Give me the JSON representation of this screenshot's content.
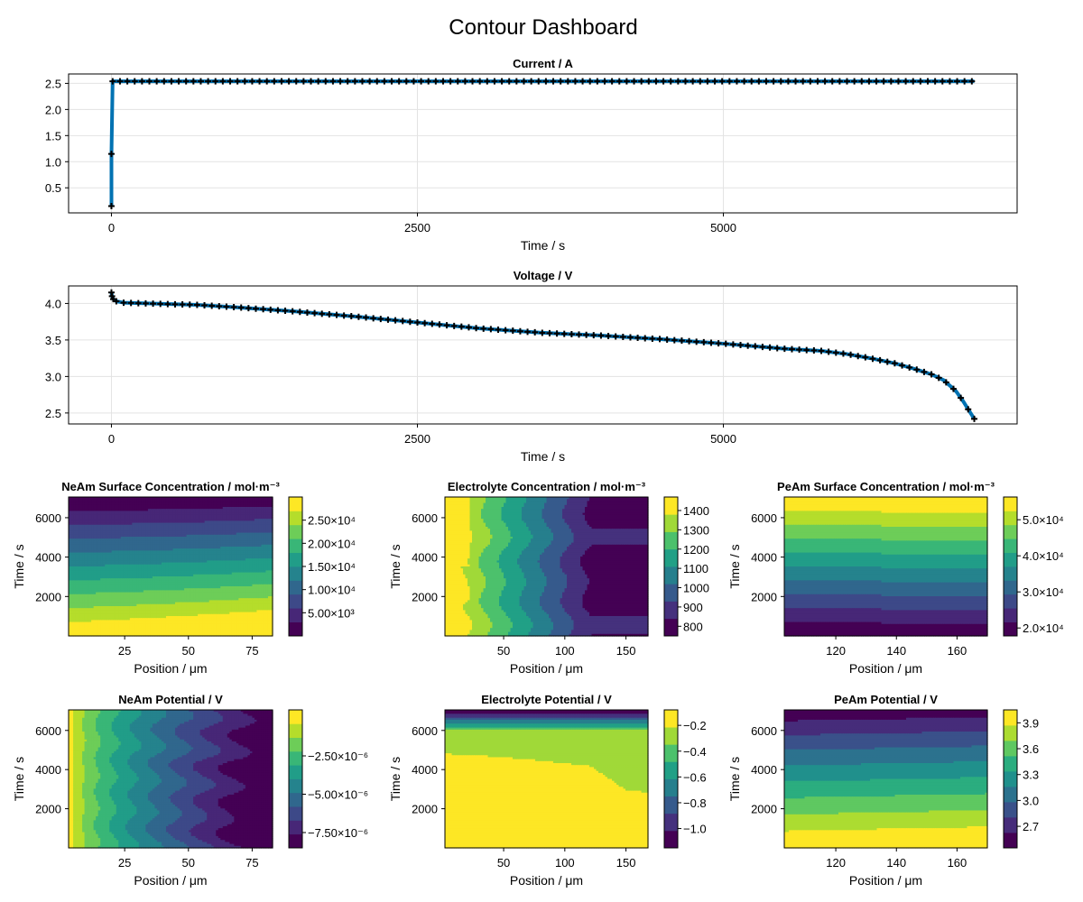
{
  "page": {
    "title": "Contour Dashboard"
  },
  "chart_data": [
    {
      "id": "current",
      "type": "line",
      "title": "Current  /  A",
      "xlabel": "Time  /  s",
      "ylabel": "",
      "xlim": [
        -350,
        7400
      ],
      "ylim": [
        0.02,
        2.68
      ],
      "xticks": [
        0,
        2500,
        5000
      ],
      "xtick_labels": [
        "0",
        "2500",
        "5000"
      ],
      "yticks": [
        0.5,
        1.0,
        1.5,
        2.0,
        2.5
      ],
      "ytick_labels": [
        "0.5",
        "1.0",
        "1.5",
        "2.0",
        "2.5"
      ],
      "grid": true,
      "line_color": "#0072b2",
      "marker": "plus",
      "series": [
        {
          "x": [
            0,
            0,
            10,
            60,
            7050
          ],
          "y": [
            0.15,
            1.15,
            2.54,
            2.54,
            2.54
          ]
        }
      ],
      "marker_generator": {
        "x_start": 10,
        "x_end": 7050,
        "step": 60,
        "y": 2.54,
        "extra": [
          [
            0,
            0.15
          ],
          [
            0,
            1.15
          ]
        ]
      }
    },
    {
      "id": "voltage",
      "type": "line",
      "title": "Voltage  /  V",
      "xlabel": "Time  /  s",
      "ylabel": "",
      "xlim": [
        -350,
        7400
      ],
      "ylim": [
        2.35,
        4.24
      ],
      "xticks": [
        0,
        2500,
        5000
      ],
      "xtick_labels": [
        "0",
        "2500",
        "5000"
      ],
      "yticks": [
        2.5,
        3.0,
        3.5,
        4.0
      ],
      "ytick_labels": [
        "2.5",
        "3.0",
        "3.5",
        "4.0"
      ],
      "grid": true,
      "line_color": "#0072b2",
      "marker": "plus",
      "series": [
        {
          "x": [
            0,
            5,
            15,
            40,
            100,
            300,
            700,
            1000,
            1500,
            2000,
            2500,
            3000,
            3500,
            4000,
            4500,
            5000,
            5500,
            5800,
            6000,
            6200,
            6400,
            6550,
            6700,
            6800,
            6900,
            6960,
            7000,
            7050
          ],
          "y": [
            4.15,
            4.1,
            4.06,
            4.03,
            4.01,
            4.0,
            3.98,
            3.95,
            3.89,
            3.82,
            3.74,
            3.66,
            3.6,
            3.56,
            3.51,
            3.45,
            3.38,
            3.35,
            3.31,
            3.25,
            3.18,
            3.11,
            3.03,
            2.95,
            2.8,
            2.66,
            2.55,
            2.42
          ]
        }
      ],
      "marker_step": 60
    },
    {
      "id": "neam-conc",
      "type": "heatmap",
      "title": "NeAm Surface Concentration  /  mol·m⁻³",
      "xlabel": "Position  /  μm",
      "ylabel": "Time  /  s",
      "xlim": [
        3,
        83
      ],
      "ylim": [
        0,
        7050
      ],
      "xticks": [
        25,
        50,
        75
      ],
      "xtick_labels": [
        "25",
        "50",
        "75"
      ],
      "yticks": [
        2000,
        4000,
        6000
      ],
      "ytick_labels": [
        "2000",
        "4000",
        "6000"
      ],
      "color_levels": 10,
      "colorbar": {
        "vmin": 0,
        "vmax": 30000,
        "ticks": [
          5000,
          10000,
          15000,
          20000,
          25000
        ],
        "tick_labels": [
          "5.00×10³",
          "1.00×10⁴",
          "1.50×10⁴",
          "2.00×10⁴",
          "2.50×10⁴"
        ]
      },
      "field": {
        "kind": "neam-conc"
      }
    },
    {
      "id": "elyte-conc",
      "type": "heatmap",
      "title": "Electrolyte Concentration  /  mol·m⁻³",
      "xlabel": "Position  /  μm",
      "ylabel": "Time  /  s",
      "xlim": [
        2,
        168
      ],
      "ylim": [
        0,
        7050
      ],
      "xticks": [
        50,
        100,
        150
      ],
      "xtick_labels": [
        "50",
        "100",
        "150"
      ],
      "yticks": [
        2000,
        4000,
        6000
      ],
      "ytick_labels": [
        "2000",
        "4000",
        "6000"
      ],
      "color_levels": 8,
      "colorbar": {
        "vmin": 750,
        "vmax": 1470,
        "ticks": [
          800,
          900,
          1000,
          1100,
          1200,
          1300,
          1400
        ],
        "tick_labels": [
          "800",
          "900",
          "1000",
          "1100",
          "1200",
          "1300",
          "1400"
        ]
      },
      "field": {
        "kind": "elyte-conc"
      }
    },
    {
      "id": "peam-conc",
      "type": "heatmap",
      "title": "PeAm Surface Concentration  /  mol·m⁻³",
      "xlabel": "Position  /  μm",
      "ylabel": "Time  /  s",
      "xlim": [
        103,
        170
      ],
      "ylim": [
        0,
        7050
      ],
      "xticks": [
        120,
        140,
        160
      ],
      "xtick_labels": [
        "120",
        "140",
        "160"
      ],
      "yticks": [
        2000,
        4000,
        6000
      ],
      "ytick_labels": [
        "2000",
        "4000",
        "6000"
      ],
      "color_levels": 10,
      "colorbar": {
        "vmin": 17800,
        "vmax": 56300,
        "ticks": [
          20000,
          30000,
          40000,
          50000
        ],
        "tick_labels": [
          "2.0×10⁴",
          "3.0×10⁴",
          "4.0×10⁴",
          "5.0×10⁴"
        ]
      },
      "field": {
        "kind": "peam-conc"
      }
    },
    {
      "id": "neam-pot",
      "type": "heatmap",
      "title": "NeAm Potential  /  V",
      "xlabel": "Position  /  μm",
      "ylabel": "Time  /  s",
      "xlim": [
        3,
        83
      ],
      "ylim": [
        0,
        7050
      ],
      "xticks": [
        25,
        50,
        75
      ],
      "xtick_labels": [
        "25",
        "50",
        "75"
      ],
      "yticks": [
        2000,
        4000,
        6000
      ],
      "ytick_labels": [
        "2000",
        "4000",
        "6000"
      ],
      "color_levels": 10,
      "colorbar": {
        "vmin": -8.5e-06,
        "vmax": 5e-07,
        "ticks": [
          -7.5e-06,
          -5e-06,
          -2.5e-06
        ],
        "tick_labels": [
          "−7.50×10⁻⁶",
          "−5.00×10⁻⁶",
          "−2.50×10⁻⁶"
        ]
      },
      "field": {
        "kind": "neam-pot"
      }
    },
    {
      "id": "elyte-pot",
      "type": "heatmap",
      "title": "Electrolyte Potential  /  V",
      "xlabel": "Position  /  μm",
      "ylabel": "Time  /  s",
      "xlim": [
        2,
        168
      ],
      "ylim": [
        0,
        7050
      ],
      "xticks": [
        50,
        100,
        150
      ],
      "xtick_labels": [
        "50",
        "100",
        "150"
      ],
      "yticks": [
        2000,
        4000,
        6000
      ],
      "ytick_labels": [
        "2000",
        "4000",
        "6000"
      ],
      "color_levels": 8,
      "colorbar": {
        "vmin": -1.15,
        "vmax": -0.08,
        "ticks": [
          -1.0,
          -0.8,
          -0.6,
          -0.4,
          -0.2
        ],
        "tick_labels": [
          "−1.0",
          "−0.8",
          "−0.6",
          "−0.4",
          "−0.2"
        ]
      },
      "field": {
        "kind": "elyte-pot"
      }
    },
    {
      "id": "peam-pot",
      "type": "heatmap",
      "title": "PeAm Potential  /  V",
      "xlabel": "Position  /  μm",
      "ylabel": "Time  /  s",
      "xlim": [
        103,
        170
      ],
      "ylim": [
        0,
        7050
      ],
      "xticks": [
        120,
        140,
        160
      ],
      "xtick_labels": [
        "120",
        "140",
        "160"
      ],
      "yticks": [
        2000,
        4000,
        6000
      ],
      "ytick_labels": [
        "2000",
        "4000",
        "6000"
      ],
      "color_levels": 9,
      "colorbar": {
        "vmin": 2.45,
        "vmax": 4.05,
        "ticks": [
          2.7,
          3.0,
          3.3,
          3.6,
          3.9
        ],
        "tick_labels": [
          "2.7",
          "3.0",
          "3.3",
          "3.6",
          "3.9"
        ]
      },
      "field": {
        "kind": "peam-pot"
      }
    }
  ]
}
